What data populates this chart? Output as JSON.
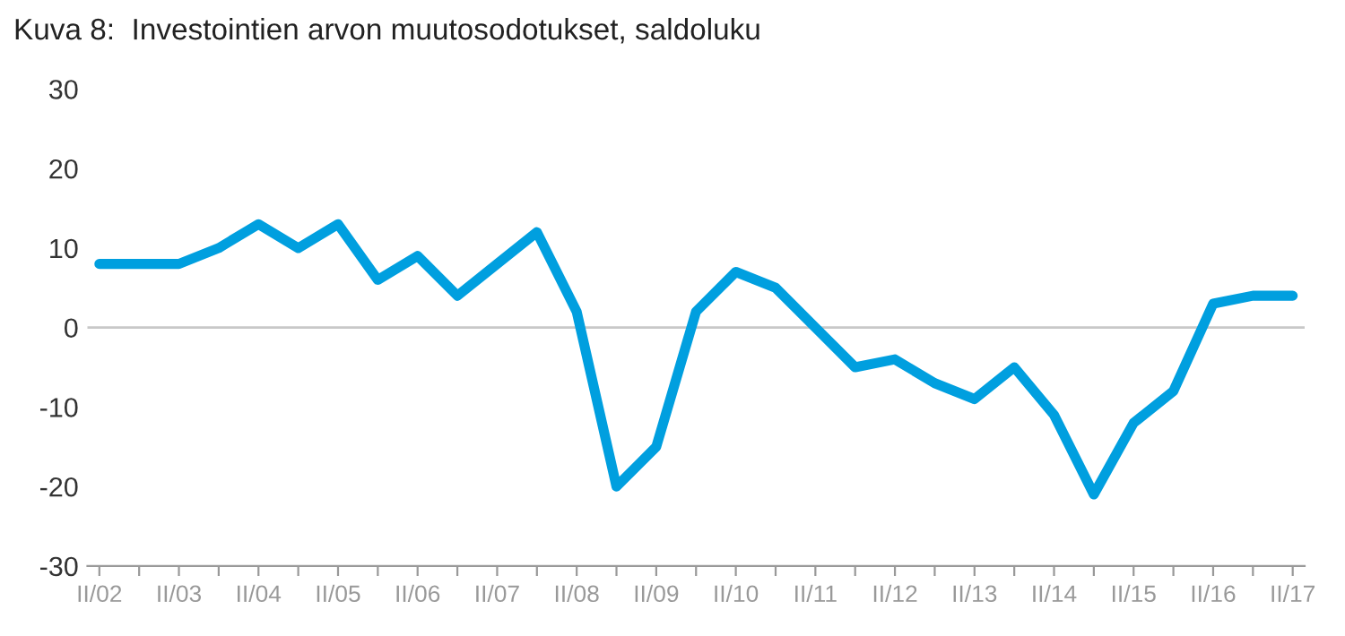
{
  "chart_data": {
    "type": "line",
    "title": "Kuva 8:  Investointien arvon muutosodotukset, saldoluku",
    "categories": [
      "II/02",
      null,
      "II/03",
      null,
      "II/04",
      null,
      "II/05",
      null,
      "II/06",
      null,
      "II/07",
      null,
      "II/08",
      null,
      "II/09",
      null,
      "II/10",
      null,
      "II/11",
      null,
      "II/12",
      null,
      "II/13",
      null,
      "II/14",
      null,
      "II/15",
      null,
      "II/16",
      null,
      "II/17"
    ],
    "series": [
      {
        "color": "#009fdf",
        "values": [
          8,
          8,
          8,
          10,
          13,
          10,
          13,
          6,
          9,
          4,
          8,
          12,
          2,
          -20,
          -15,
          2,
          7,
          5,
          0,
          -5,
          -4,
          -7,
          -9,
          -5,
          -11,
          -21,
          -12,
          -8,
          3,
          4,
          4
        ]
      }
    ],
    "ylim": [
      -30,
      30
    ],
    "yticks": [
      -30,
      -20,
      -10,
      0,
      10,
      20,
      30
    ],
    "ref_lines": [
      {
        "axis": "y",
        "value": 0,
        "color": "#c8c8c8"
      }
    ],
    "grid": false,
    "marker": "none",
    "line_style": "solid"
  }
}
